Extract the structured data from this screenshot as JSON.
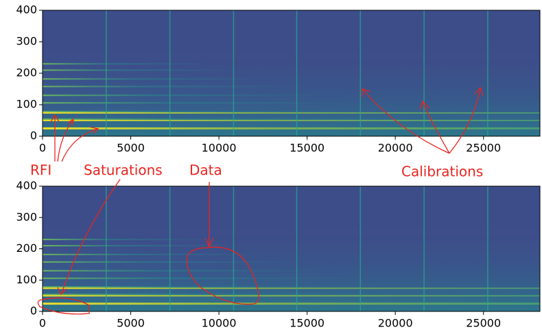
{
  "chart_data": [
    {
      "type": "heatmap",
      "xlim": [
        0,
        28200
      ],
      "ylim": [
        0,
        400
      ],
      "xticks": [
        0,
        5000,
        10000,
        15000,
        20000,
        25000
      ],
      "yticks": [
        0,
        100,
        200,
        300,
        400
      ]
    },
    {
      "type": "heatmap",
      "xlim": [
        0,
        28200
      ],
      "ylim": [
        0,
        400
      ],
      "xticks": [
        0,
        5000,
        10000,
        15000,
        20000,
        25000
      ],
      "yticks": [
        0,
        100,
        200,
        300,
        400
      ]
    }
  ],
  "annotations": [
    "RFI",
    "Saturations",
    "Data",
    "Calibrations"
  ]
}
